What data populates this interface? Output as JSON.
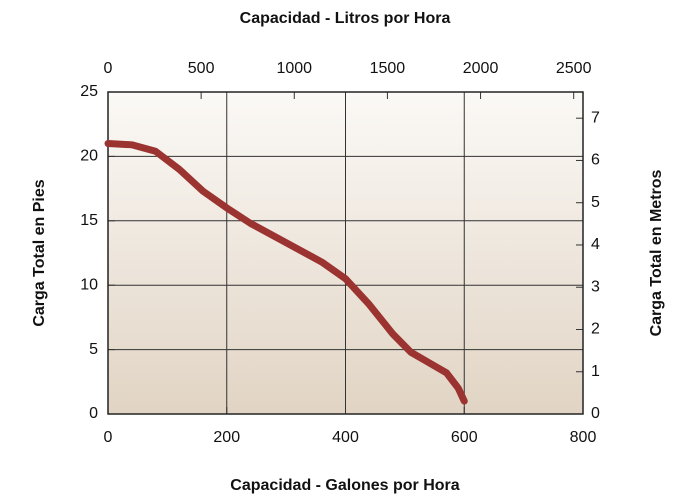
{
  "chart_data": {
    "type": "line",
    "title": "Capacidad - Litros por Hora",
    "xlabel": "Capacidad - Galones por Hora",
    "ylabel": "Carga Total en Pies",
    "y2label": "Carga Total en Metros",
    "xlim": [
      0,
      800
    ],
    "xticks": [
      0,
      200,
      400,
      600,
      800
    ],
    "x2lim": [
      0,
      2550
    ],
    "x2ticks": [
      0,
      500,
      1000,
      1500,
      2000,
      2500
    ],
    "ylim": [
      0,
      25
    ],
    "yticks": [
      0,
      5,
      10,
      15,
      20,
      25
    ],
    "y2lim": [
      0,
      7.62
    ],
    "y2ticks": [
      0,
      1,
      2,
      3,
      4,
      5,
      6,
      7
    ],
    "grid": true,
    "series": [
      {
        "color": "#9b3330",
        "x": [
          0,
          40,
          80,
          120,
          160,
          200,
          240,
          300,
          360,
          400,
          440,
          480,
          510,
          540,
          570,
          590,
          600
        ],
        "values": [
          21,
          20.9,
          20.4,
          19,
          17.3,
          16,
          14.8,
          13.3,
          11.8,
          10.5,
          8.5,
          6.2,
          4.8,
          4,
          3.2,
          2,
          1
        ]
      }
    ]
  }
}
